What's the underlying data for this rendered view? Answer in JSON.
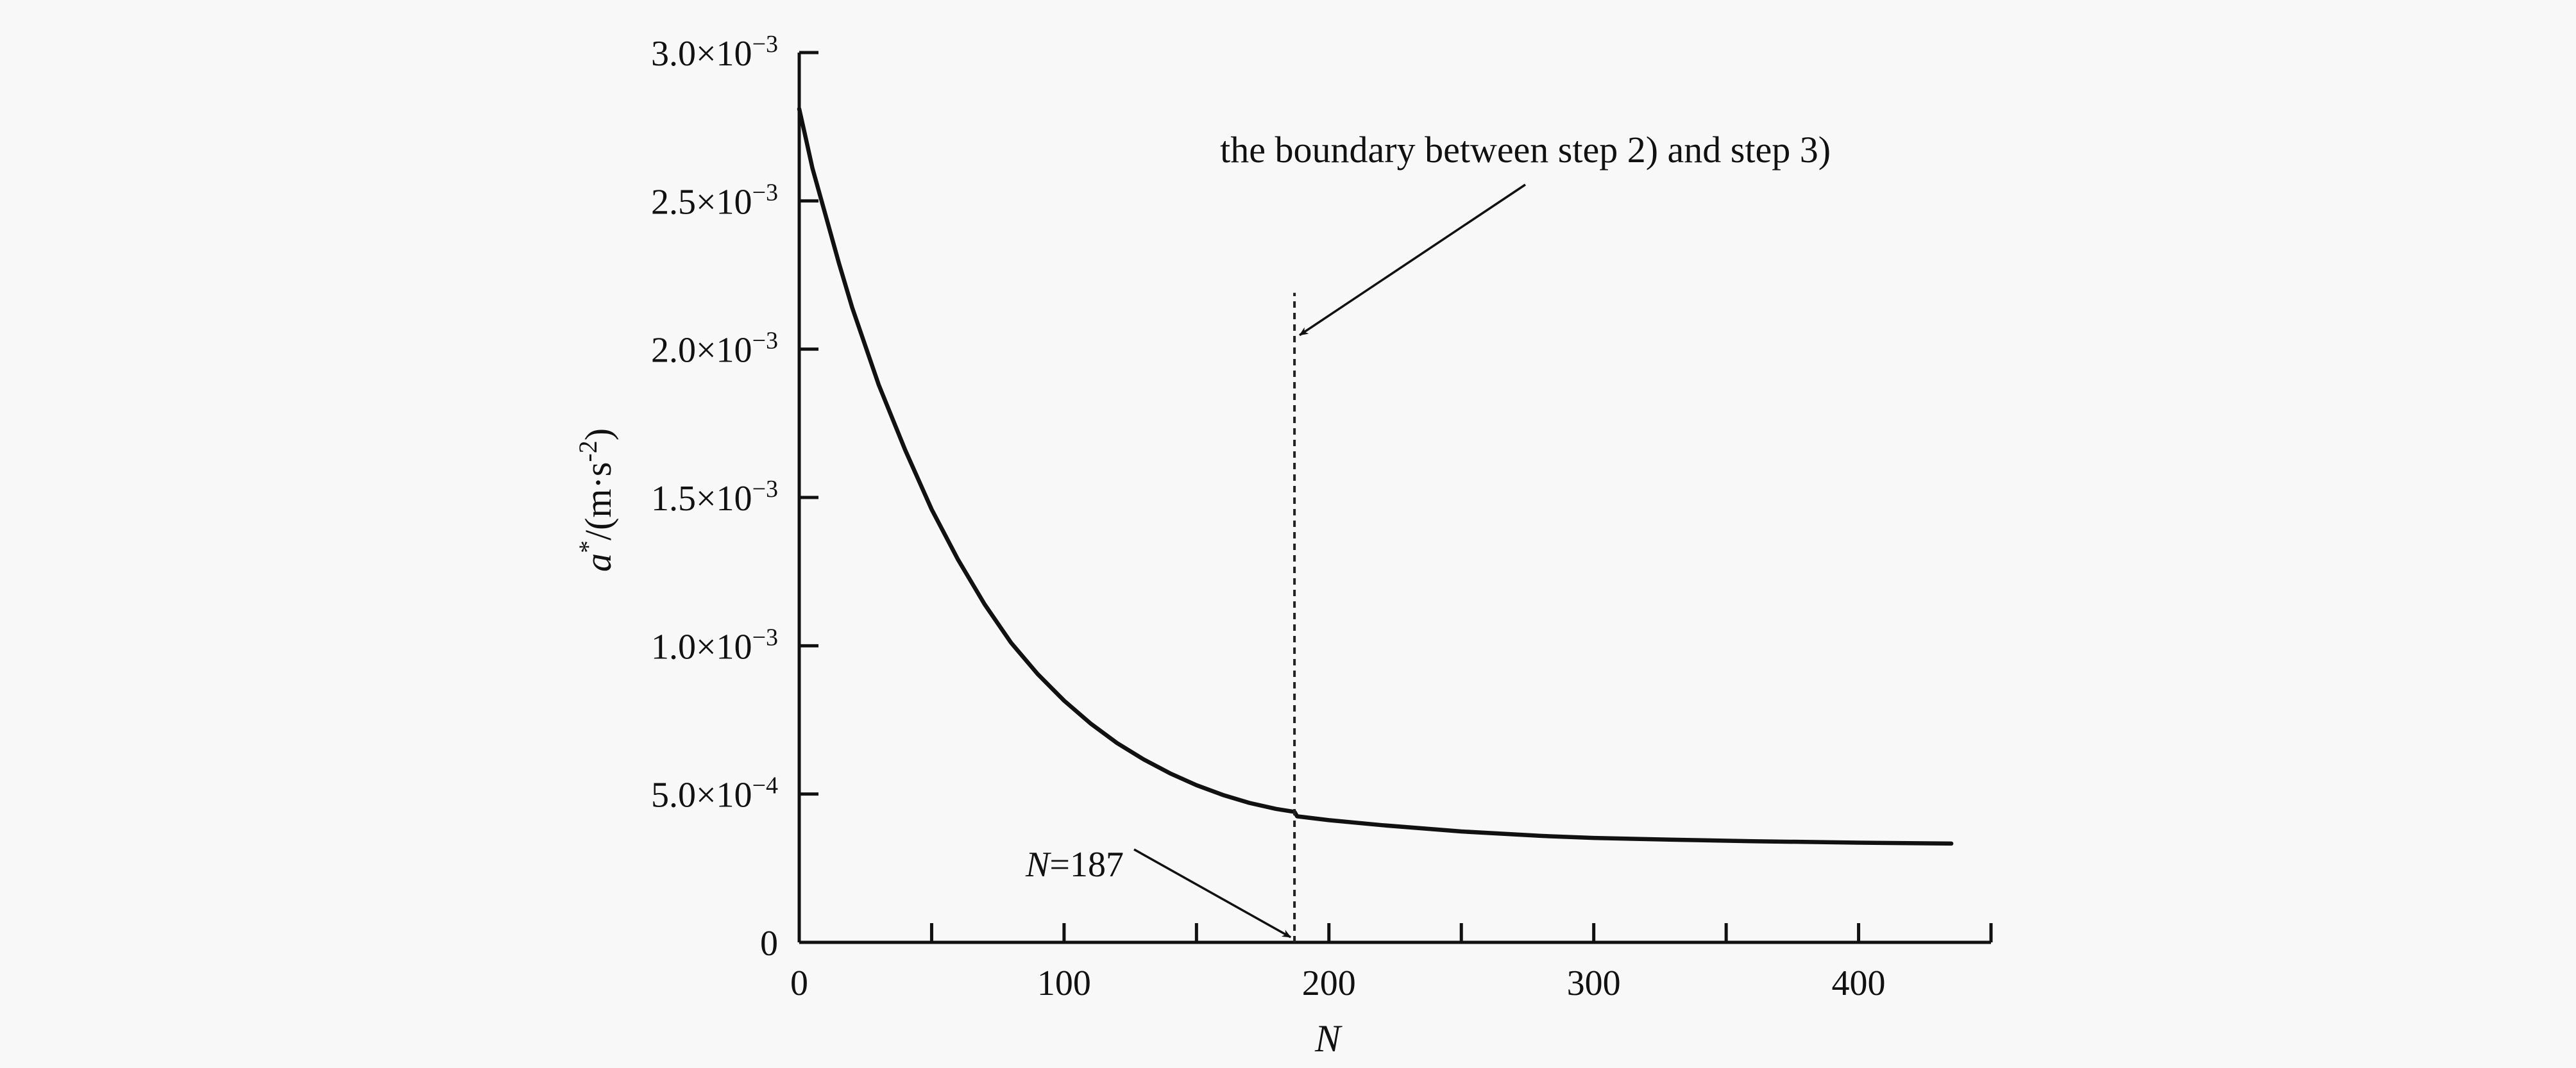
{
  "chart_data": {
    "type": "line",
    "title": "",
    "xlabel": "N",
    "ylabel": {
      "var": "a",
      "sup": "*",
      "unit_prefix": "/(m·s",
      "unit_exp": "-2",
      "unit_suffix": ")"
    },
    "xlim": [
      0,
      450
    ],
    "ylim": [
      0,
      0.003
    ],
    "x_ticks_major": [
      0,
      100,
      200,
      300,
      400
    ],
    "x_ticks_minor": [
      50,
      150,
      250,
      350,
      450
    ],
    "x_tick_labels": [
      "0",
      "100",
      "200",
      "300",
      "400"
    ],
    "y_ticks": [
      0,
      0.0005,
      0.001,
      0.0015,
      0.002,
      0.0025,
      0.003
    ],
    "y_tick_labels": [
      {
        "mantissa": "0",
        "exp": ""
      },
      {
        "mantissa": "5.0×10",
        "exp": "−4"
      },
      {
        "mantissa": "1.0×10",
        "exp": "−3"
      },
      {
        "mantissa": "1.5×10",
        "exp": "−3"
      },
      {
        "mantissa": "2.0×10",
        "exp": "−3"
      },
      {
        "mantissa": "2.5×10",
        "exp": "−3"
      },
      {
        "mantissa": "3.0×10",
        "exp": "−3"
      }
    ],
    "grid": false,
    "series": [
      {
        "x": [
          0,
          2,
          5,
          10,
          15,
          20,
          30,
          40,
          50,
          60,
          70,
          80,
          90,
          100,
          110,
          120,
          130,
          140,
          150,
          160,
          170,
          180,
          187,
          188,
          200,
          220,
          250,
          280,
          300,
          330,
          360,
          400,
          435
        ],
        "y": [
          0.00281,
          0.00273,
          0.00261,
          0.00245,
          0.00229,
          0.00214,
          0.00188,
          0.00166,
          0.00146,
          0.00129,
          0.00114,
          0.00101,
          0.000905,
          0.000815,
          0.000738,
          0.000672,
          0.000617,
          0.00057,
          0.00053,
          0.000497,
          0.00047,
          0.00045,
          0.00044,
          0.000425,
          0.000412,
          0.000395,
          0.000374,
          0.000359,
          0.000352,
          0.000346,
          0.000341,
          0.000336,
          0.000333
        ]
      }
    ],
    "boundary": {
      "x": 187,
      "y_top": 0.00219,
      "label": "the boundary between step 2) and step 3)",
      "label_at": {
        "x": 187,
        "y": 0.00263
      },
      "point_label_var": "N",
      "point_label_value": "=187",
      "point_label_at": {
        "x": 122,
        "y": 0.0003
      }
    }
  }
}
